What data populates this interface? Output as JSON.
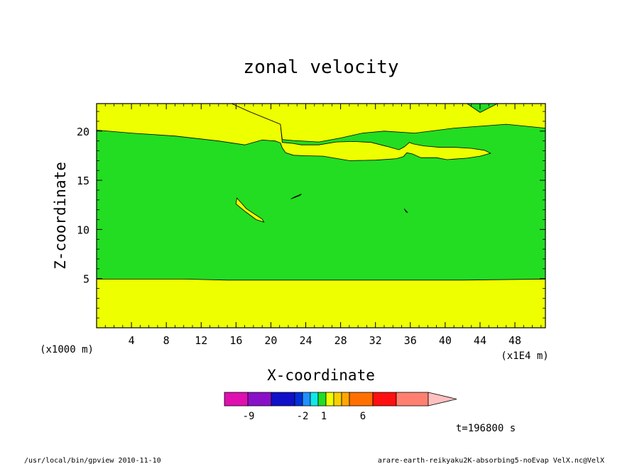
{
  "chart_data": {
    "type": "heatmap",
    "title": "zonal velocity",
    "xlabel": "X-coordinate",
    "ylabel": "Z-coordinate",
    "x_unit_label": "(x1E4 m)",
    "y_unit_label": "(x1000 m)",
    "xlim": [
      0,
      51.5
    ],
    "ylim": [
      0,
      22.8
    ],
    "x_ticks": [
      4,
      8,
      12,
      16,
      20,
      24,
      28,
      32,
      36,
      40,
      44,
      48
    ],
    "y_ticks": [
      5,
      10,
      15,
      20
    ],
    "x_tick_labels": [
      "4",
      "8",
      "12",
      "16",
      "20",
      "24",
      "28",
      "32",
      "36",
      "40",
      "44",
      "48"
    ],
    "y_tick_labels": [
      "5",
      "10",
      "15",
      "20"
    ],
    "regions": [
      {
        "level": "1 to 2",
        "color": "#22dd22",
        "description": "background"
      },
      {
        "level": "2 to 3",
        "color": "#eeff00",
        "shape": "bottom-band",
        "polygon": [
          [
            0,
            0
          ],
          [
            0,
            4.95
          ],
          [
            10,
            4.95
          ],
          [
            15,
            4.85
          ],
          [
            25,
            4.85
          ],
          [
            35,
            4.85
          ],
          [
            42,
            4.85
          ],
          [
            51.5,
            4.95
          ],
          [
            51.5,
            0
          ]
        ]
      },
      {
        "level": "2 to 3",
        "color": "#eeff00",
        "shape": "upper-band",
        "polygon": [
          [
            0,
            22.8
          ],
          [
            0,
            20.1
          ],
          [
            4,
            19.8
          ],
          [
            9,
            19.5
          ],
          [
            14,
            19.0
          ],
          [
            17,
            18.6
          ],
          [
            19,
            19.1
          ],
          [
            20.5,
            19.0
          ],
          [
            21.1,
            18.8
          ],
          [
            21.3,
            18.3
          ],
          [
            21.7,
            17.8
          ],
          [
            22.6,
            17.55
          ],
          [
            24,
            17.5
          ],
          [
            26,
            17.45
          ],
          [
            29,
            17.0
          ],
          [
            32,
            17.05
          ],
          [
            34.4,
            17.2
          ],
          [
            35.2,
            17.4
          ],
          [
            35.6,
            17.8
          ],
          [
            36.2,
            17.7
          ],
          [
            37.2,
            17.3
          ],
          [
            39,
            17.3
          ],
          [
            40.2,
            17.1
          ],
          [
            42.5,
            17.25
          ],
          [
            44,
            17.45
          ],
          [
            45.2,
            17.75
          ],
          [
            44.5,
            18.05
          ],
          [
            43,
            18.25
          ],
          [
            41.2,
            18.35
          ],
          [
            39.4,
            18.35
          ],
          [
            37.5,
            18.5
          ],
          [
            36.3,
            18.7
          ],
          [
            35.9,
            18.85
          ],
          [
            35.3,
            18.4
          ],
          [
            34.7,
            18.1
          ],
          [
            33.3,
            18.45
          ],
          [
            31.5,
            18.85
          ],
          [
            29.5,
            18.95
          ],
          [
            27.5,
            18.9
          ],
          [
            25.5,
            18.6
          ],
          [
            23.5,
            18.6
          ],
          [
            22.5,
            18.75
          ],
          [
            21.3,
            18.85
          ],
          [
            21.1,
            20.7
          ],
          [
            17.5,
            22.0
          ],
          [
            15.5,
            22.8
          ]
        ]
      },
      {
        "level": "2 to 3",
        "color": "#eeff00",
        "shape": "upper-right-band",
        "polygon": [
          [
            15.5,
            22.8
          ],
          [
            17.5,
            22.0
          ],
          [
            21.1,
            20.7
          ],
          [
            21.3,
            19.15
          ],
          [
            22.5,
            19.05
          ],
          [
            25.5,
            18.9
          ],
          [
            28,
            19.3
          ],
          [
            30.5,
            19.8
          ],
          [
            33,
            20.0
          ],
          [
            36.5,
            19.8
          ],
          [
            41,
            20.3
          ],
          [
            47,
            20.7
          ],
          [
            51.5,
            20.3
          ],
          [
            51.5,
            22.8
          ],
          [
            46,
            22.8
          ],
          [
            44,
            21.9
          ],
          [
            42.5,
            22.8
          ]
        ]
      },
      {
        "level": "2 to 3",
        "color": "#eeff00",
        "shape": "blob",
        "polygon": [
          [
            16,
            12.6
          ],
          [
            16.1,
            13.2
          ],
          [
            17.2,
            12.1
          ],
          [
            19,
            11.05
          ],
          [
            19.2,
            10.75
          ],
          [
            18.3,
            11.0
          ],
          [
            17.1,
            11.8
          ]
        ]
      },
      {
        "level": "2 to 3",
        "color": "#eeff00",
        "shape": "blob",
        "polygon": [
          [
            22.3,
            13.1
          ],
          [
            23.3,
            13.45
          ],
          [
            23.5,
            13.6
          ],
          [
            22.7,
            13.3
          ]
        ]
      },
      {
        "level": "2 to 3",
        "color": "#eeff00",
        "shape": "blob",
        "polygon": [
          [
            35.3,
            12.1
          ],
          [
            35.7,
            11.7
          ],
          [
            35.5,
            11.8
          ]
        ]
      }
    ],
    "colorbar": {
      "tick_labels": [
        "-9",
        "-2",
        "1",
        "6"
      ],
      "tick_values": [
        -9,
        -2,
        1,
        6
      ],
      "segments": [
        {
          "color": "#e010b0"
        },
        {
          "color": "#8a10c8"
        },
        {
          "color": "#1010c8"
        },
        {
          "color": "#0030d8"
        },
        {
          "color": "#2090ff"
        },
        {
          "color": "#10e8e8"
        },
        {
          "color": "#22dd22"
        },
        {
          "color": "#eeff00"
        },
        {
          "color": "#f8d000"
        },
        {
          "color": "#ffa800"
        },
        {
          "color": "#ff7000"
        },
        {
          "color": "#ff1010"
        },
        {
          "color": "#ff8070"
        },
        {
          "color": "#ffc0c0"
        }
      ]
    },
    "time_label": "t=196800 s"
  },
  "footer": {
    "left": "/usr/local/bin/gpview  2010-11-10",
    "right": "arare-earth-reikyaku2K-absorbing5-noEvap_VelX.nc@VelX"
  }
}
